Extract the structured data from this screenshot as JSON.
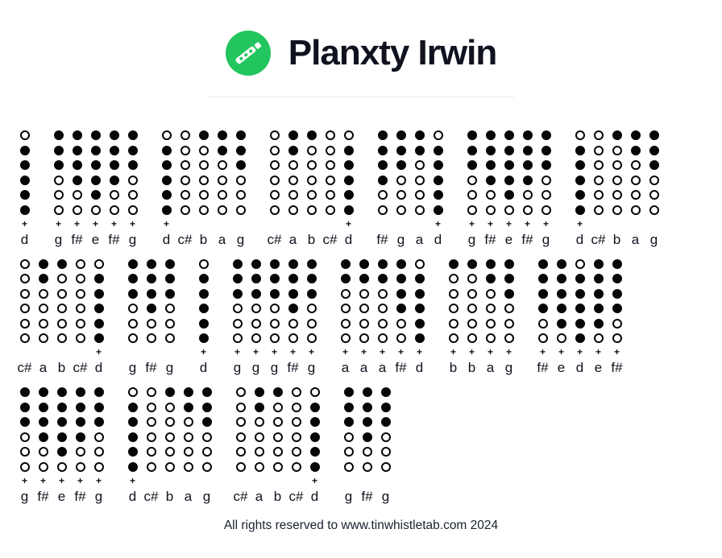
{
  "header": {
    "title": "Planxty Irwin",
    "logo_icon": "tin-whistle-icon",
    "logo_color": "#22c55e"
  },
  "symbols": {
    "octave_plus": "+"
  },
  "colors": {
    "ink": "#050608",
    "title_ink": "#10131f",
    "accent_green": "#22c55e",
    "divider": "#e7e9ee"
  },
  "legend": {
    "hole_filled_means": "covered hole",
    "hole_open_means": "open hole",
    "plus_means": "second octave"
  },
  "fingerings": {
    "d": [
      0,
      1,
      1,
      1,
      1,
      1
    ],
    "e": [
      1,
      1,
      1,
      1,
      1,
      0
    ],
    "f#": [
      1,
      1,
      1,
      1,
      0,
      0
    ],
    "g": [
      1,
      1,
      1,
      0,
      0,
      0
    ],
    "a": [
      1,
      1,
      0,
      0,
      0,
      0
    ],
    "b": [
      1,
      0,
      0,
      0,
      0,
      0
    ],
    "c#": [
      0,
      0,
      0,
      0,
      0,
      0
    ]
  },
  "tab_rows": [
    {
      "groups": [
        {
          "notes": [
            {
              "n": "d",
              "p": true
            }
          ]
        },
        {
          "notes": [
            {
              "n": "g",
              "p": true
            },
            {
              "n": "f#",
              "p": true
            },
            {
              "n": "e",
              "p": true
            },
            {
              "n": "f#",
              "p": true
            },
            {
              "n": "g",
              "p": true
            }
          ]
        },
        {
          "notes": [
            {
              "n": "d",
              "p": true
            },
            {
              "n": "c#",
              "p": false
            },
            {
              "n": "b",
              "p": false
            },
            {
              "n": "a",
              "p": false
            },
            {
              "n": "g",
              "p": false
            }
          ]
        },
        {
          "notes": [
            {
              "n": "c#",
              "p": false
            },
            {
              "n": "a",
              "p": false
            },
            {
              "n": "b",
              "p": false
            },
            {
              "n": "c#",
              "p": false
            },
            {
              "n": "d",
              "p": true
            }
          ]
        },
        {
          "notes": [
            {
              "n": "f#",
              "p": false
            },
            {
              "n": "g",
              "p": false
            },
            {
              "n": "a",
              "p": false
            },
            {
              "n": "d",
              "p": true
            }
          ]
        },
        {
          "notes": [
            {
              "n": "g",
              "p": true
            },
            {
              "n": "f#",
              "p": true
            },
            {
              "n": "e",
              "p": true
            },
            {
              "n": "f#",
              "p": true
            },
            {
              "n": "g",
              "p": true
            }
          ]
        },
        {
          "notes": [
            {
              "n": "d",
              "p": true
            },
            {
              "n": "c#",
              "p": false
            },
            {
              "n": "b",
              "p": false
            },
            {
              "n": "a",
              "p": false
            },
            {
              "n": "g",
              "p": false
            }
          ]
        }
      ]
    },
    {
      "groups": [
        {
          "notes": [
            {
              "n": "c#",
              "p": false
            },
            {
              "n": "a",
              "p": false
            },
            {
              "n": "b",
              "p": false
            },
            {
              "n": "c#",
              "p": false
            },
            {
              "n": "d",
              "p": true
            }
          ]
        },
        {
          "notes": [
            {
              "n": "g",
              "p": false
            },
            {
              "n": "f#",
              "p": false
            },
            {
              "n": "g",
              "p": false
            }
          ]
        },
        {
          "notes": [
            {
              "n": "d",
              "p": true
            }
          ]
        },
        {
          "notes": [
            {
              "n": "g",
              "p": true
            },
            {
              "n": "g",
              "p": true
            },
            {
              "n": "g",
              "p": true
            },
            {
              "n": "f#",
              "p": true
            },
            {
              "n": "g",
              "p": true
            }
          ]
        },
        {
          "notes": [
            {
              "n": "a",
              "p": true
            },
            {
              "n": "a",
              "p": true
            },
            {
              "n": "a",
              "p": true
            },
            {
              "n": "f#",
              "p": true
            },
            {
              "n": "d",
              "p": true
            }
          ]
        },
        {
          "notes": [
            {
              "n": "b",
              "p": true
            },
            {
              "n": "b",
              "p": true
            },
            {
              "n": "a",
              "p": true
            },
            {
              "n": "g",
              "p": true
            }
          ]
        },
        {
          "notes": [
            {
              "n": "f#",
              "p": true
            },
            {
              "n": "e",
              "p": true
            },
            {
              "n": "d",
              "p": true
            },
            {
              "n": "e",
              "p": true
            },
            {
              "n": "f#",
              "p": true
            }
          ]
        }
      ]
    },
    {
      "groups": [
        {
          "notes": [
            {
              "n": "g",
              "p": true
            },
            {
              "n": "f#",
              "p": true
            },
            {
              "n": "e",
              "p": true
            },
            {
              "n": "f#",
              "p": true
            },
            {
              "n": "g",
              "p": true
            }
          ]
        },
        {
          "notes": [
            {
              "n": "d",
              "p": true
            },
            {
              "n": "c#",
              "p": false
            },
            {
              "n": "b",
              "p": false
            },
            {
              "n": "a",
              "p": false
            },
            {
              "n": "g",
              "p": false
            }
          ]
        },
        {
          "notes": [
            {
              "n": "c#",
              "p": false
            },
            {
              "n": "a",
              "p": false
            },
            {
              "n": "b",
              "p": false
            },
            {
              "n": "c#",
              "p": false
            },
            {
              "n": "d",
              "p": true
            }
          ]
        },
        {
          "notes": [
            {
              "n": "g",
              "p": false
            },
            {
              "n": "f#",
              "p": false
            },
            {
              "n": "g",
              "p": false
            }
          ]
        }
      ]
    }
  ],
  "footer": {
    "text": "All rights reserved to www.tinwhistletab.com 2024"
  }
}
